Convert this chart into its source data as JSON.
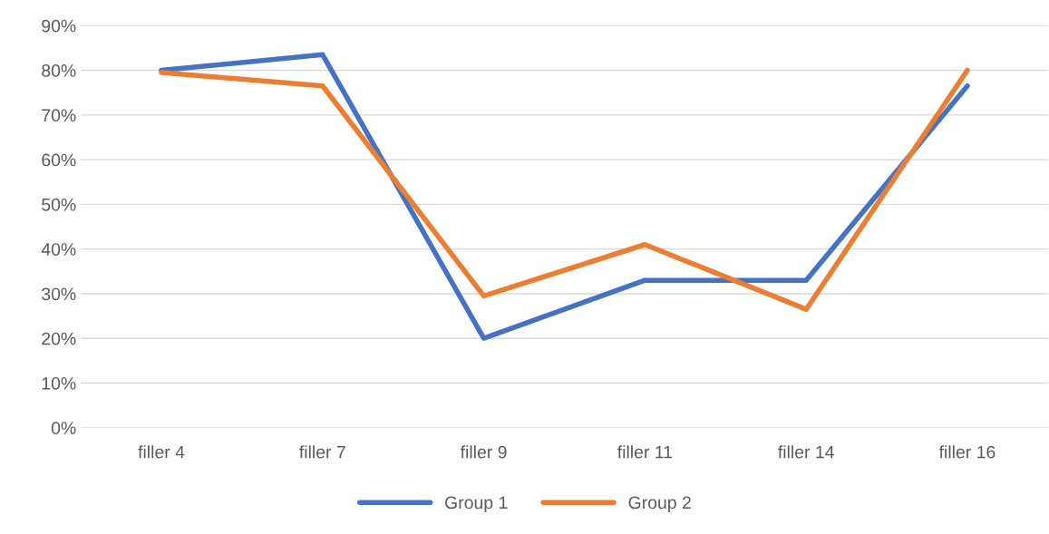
{
  "chart_data": {
    "type": "line",
    "categories": [
      "filler 4",
      "filler 7",
      "filler 9",
      "filler 11",
      "filler 14",
      "filler 16"
    ],
    "series": [
      {
        "name": "Group 1",
        "color": "#4472c4",
        "values": [
          80,
          83.5,
          20,
          33,
          33,
          76.5
        ]
      },
      {
        "name": "Group 2",
        "color": "#ed7d31",
        "values": [
          79.5,
          76.5,
          29.5,
          41,
          26.5,
          80
        ]
      }
    ],
    "ylim": [
      0,
      90
    ],
    "yticks": [
      {
        "value": 0,
        "label": "0%"
      },
      {
        "value": 10,
        "label": "10%"
      },
      {
        "value": 20,
        "label": "20%"
      },
      {
        "value": 30,
        "label": "30%"
      },
      {
        "value": 40,
        "label": "40%"
      },
      {
        "value": 50,
        "label": "50%"
      },
      {
        "value": 60,
        "label": "60%"
      },
      {
        "value": 70,
        "label": "70%"
      },
      {
        "value": 80,
        "label": "80%"
      },
      {
        "value": 90,
        "label": "90%"
      }
    ],
    "grid": "y",
    "legend": "bottom",
    "marker": "none",
    "line_style": "solid"
  }
}
